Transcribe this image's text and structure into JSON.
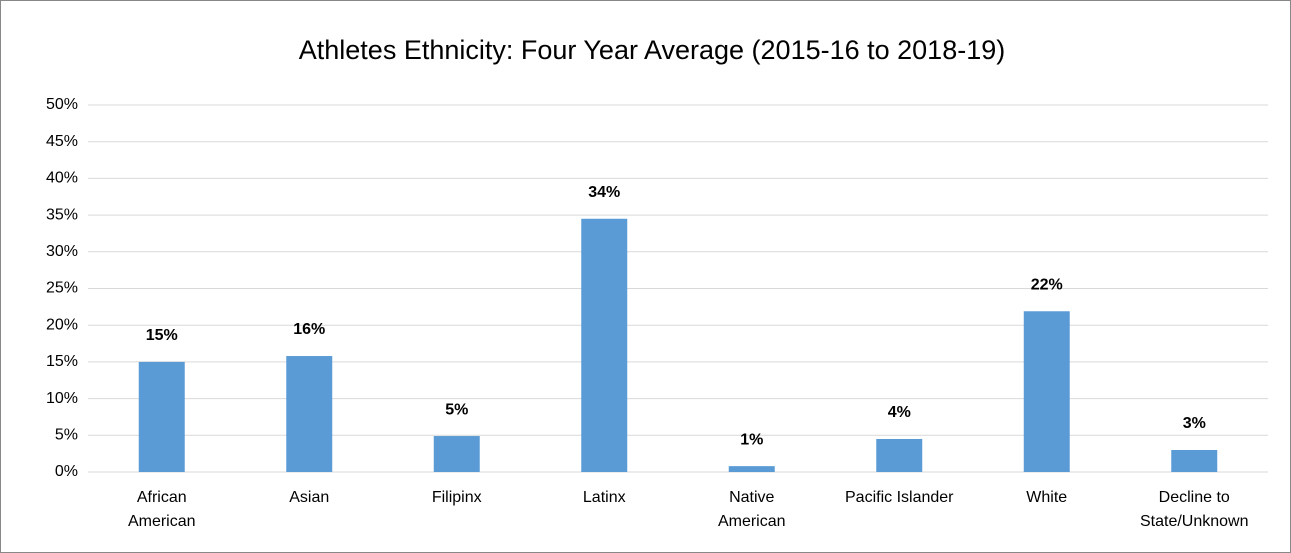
{
  "chart_data": {
    "type": "bar",
    "title": "Athletes Ethnicity: Four Year Average (2015-16 to 2018-19)",
    "categories": [
      "African American",
      "Asian",
      "Filipinx",
      "Latinx",
      "Native American",
      "Pacific Islander",
      "White",
      "Decline to State/Unknown"
    ],
    "values": [
      15.0,
      15.8,
      4.9,
      34.5,
      0.8,
      4.5,
      21.9,
      3.0
    ],
    "value_labels": [
      "15%",
      "16%",
      "5%",
      "34%",
      "1%",
      "4%",
      "22%",
      "3%"
    ],
    "color": "#5b9bd5",
    "ylim": [
      0,
      50
    ],
    "yticks": [
      {
        "value": 0,
        "label": "0%"
      },
      {
        "value": 5,
        "label": "5%"
      },
      {
        "value": 10,
        "label": "10%"
      },
      {
        "value": 15,
        "label": "15%"
      },
      {
        "value": 20,
        "label": "20%"
      },
      {
        "value": 25,
        "label": "25%"
      },
      {
        "value": 30,
        "label": "30%"
      },
      {
        "value": 35,
        "label": "35%"
      },
      {
        "value": 40,
        "label": "40%"
      },
      {
        "value": 45,
        "label": "45%"
      },
      {
        "value": 50,
        "label": "50%"
      }
    ],
    "grid": true
  }
}
